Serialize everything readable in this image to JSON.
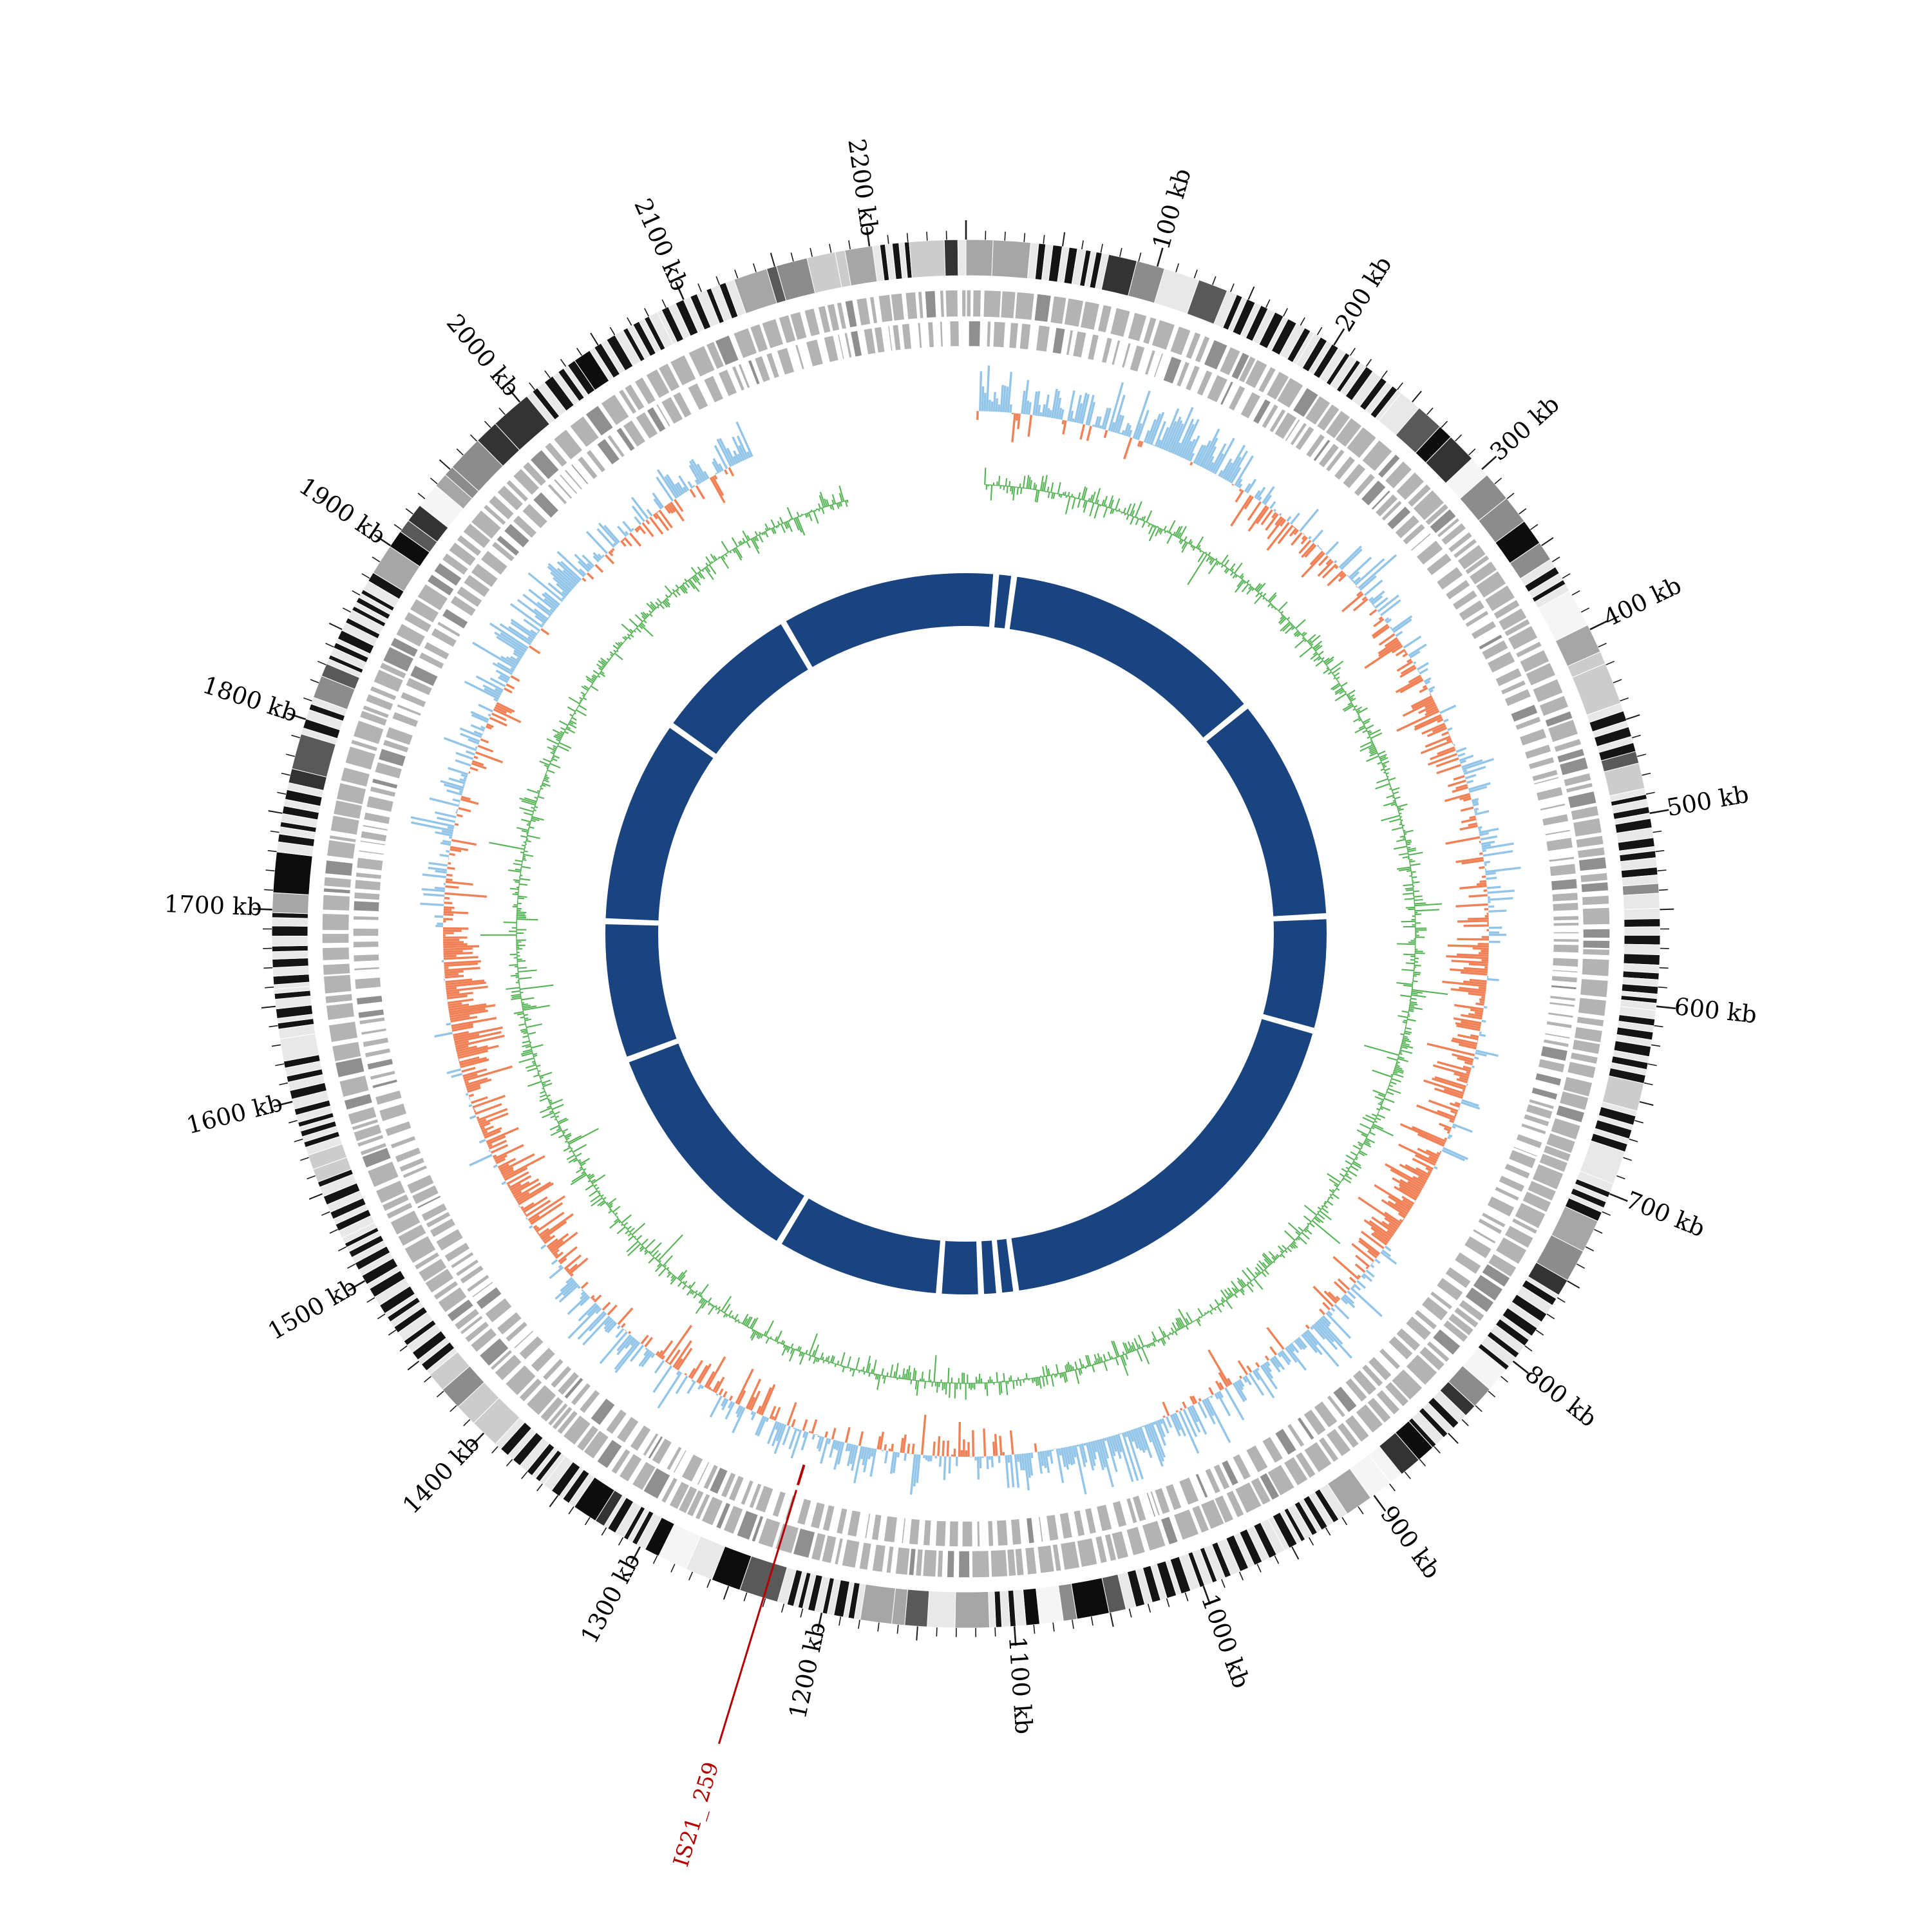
{
  "page": {
    "background": "#ffffff"
  },
  "chart_data": {
    "type": "circular-genome-plot",
    "genome_length_kb": 2250,
    "tick_major_interval_kb": 100,
    "tick_mid_interval_kb": 50,
    "tick_minor_interval_kb": 10,
    "tick_labels": [
      "100 kb",
      "200 kb",
      "300 kb",
      "400 kb",
      "500 kb",
      "600 kb",
      "700 kb",
      "800 kb",
      "900 kb",
      "1000 kb",
      "1100 kb",
      "1200 kb",
      "1300 kb",
      "1400 kb",
      "1500 kb",
      "1600 kb",
      "1700 kb",
      "1800 kb",
      "1900 kb",
      "2000 kb",
      "2100 kb",
      "2200 kb"
    ],
    "rings_outer_to_inner": [
      {
        "name": "ideogram-grayscale-blocks",
        "style": "grayscale-blocks"
      },
      {
        "name": "genes-forward-strand-tiles",
        "color": "#b3b3b3"
      },
      {
        "name": "genes-reverse-strand-tiles",
        "color": "#b3b3b3"
      },
      {
        "name": "gc-skew-plot",
        "positive_color": "#92c5e8",
        "negative_color": "#f08055"
      },
      {
        "name": "gc-content-plot",
        "color": "#55b355"
      },
      {
        "name": "contigs-ring",
        "color": "#1a4480"
      }
    ],
    "colors": {
      "ideogram_shades": [
        "#0d0d0d",
        "#333333",
        "#595959",
        "#8c8c8c",
        "#a6a6a6",
        "#cccccc",
        "#e8e8e8",
        "#f5f5f5"
      ],
      "tile_gray": "#b3b3b3",
      "tile_gray_dark": "#8f8f8f",
      "skew_positive_blue": "#92c5e8",
      "skew_negative_orange": "#f08055",
      "gc_green": "#55b355",
      "contig_navy": "#1a4480",
      "tick_black": "#1a1a1a",
      "annotation_red": "#b40000"
    },
    "data_ranges": {
      "gc_skew_kb": [
        8,
        2100
      ],
      "gc_content_kb": [
        15,
        2155
      ]
    },
    "contig_boundaries_kb": [
      30,
      48,
      318,
      545,
      660,
      1075,
      1092,
      1110,
      1152,
      1320,
      1560,
      1700,
      1908,
      2060
    ],
    "annotations": [
      {
        "label": "IS21_ 259",
        "position_kb": 1231,
        "color": "#b40000"
      }
    ],
    "seeds": {
      "ideogram": 11,
      "tiles_outer": 23,
      "tiles_inner": 37,
      "gc_skew": 51,
      "gc_content": 73
    }
  }
}
